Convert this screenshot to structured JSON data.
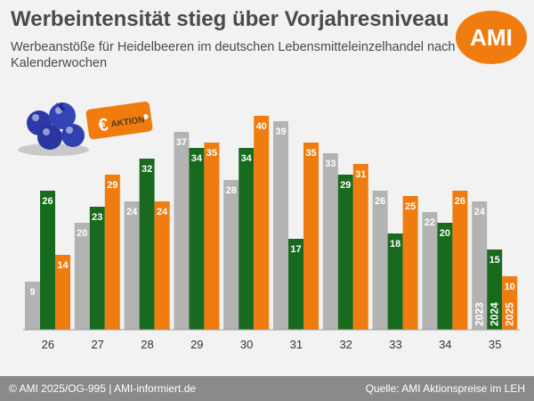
{
  "title": "Werbeintensität stieg über Vorjahresniveau",
  "subtitle": "Werbeanstöße für Heidelbeeren im deutschen Lebensmitteleinzelhandel nach Kalenderwochen",
  "logo_text": "AMI",
  "aktion_badge": {
    "symbol": "€",
    "text": "AKTION"
  },
  "footer": {
    "left": "© AMI 2025/OG-995 | AMI-informiert.de",
    "right": "Quelle: AMI Aktionspreise im LEH"
  },
  "colors": {
    "2023": "#b3b3b3",
    "2024": "#186a1e",
    "2025": "#f07c10",
    "logo": "#f07c10",
    "footer": "#8a8a8a",
    "background": "#f2f2f2"
  },
  "chart_data": {
    "type": "bar",
    "categories": [
      "26",
      "27",
      "28",
      "29",
      "30",
      "31",
      "32",
      "33",
      "34",
      "35"
    ],
    "series": [
      {
        "name": "2023",
        "values": [
          9,
          20,
          24,
          37,
          28,
          39,
          33,
          26,
          22,
          24
        ]
      },
      {
        "name": "2024",
        "values": [
          26,
          23,
          32,
          34,
          34,
          17,
          29,
          18,
          20,
          15
        ]
      },
      {
        "name": "2025",
        "values": [
          14,
          29,
          24,
          35,
          40,
          35,
          31,
          25,
          26,
          10
        ]
      }
    ],
    "ylim": [
      0,
      42
    ],
    "grid": false,
    "legend": "series names printed vertically inside the bars of the last category"
  }
}
